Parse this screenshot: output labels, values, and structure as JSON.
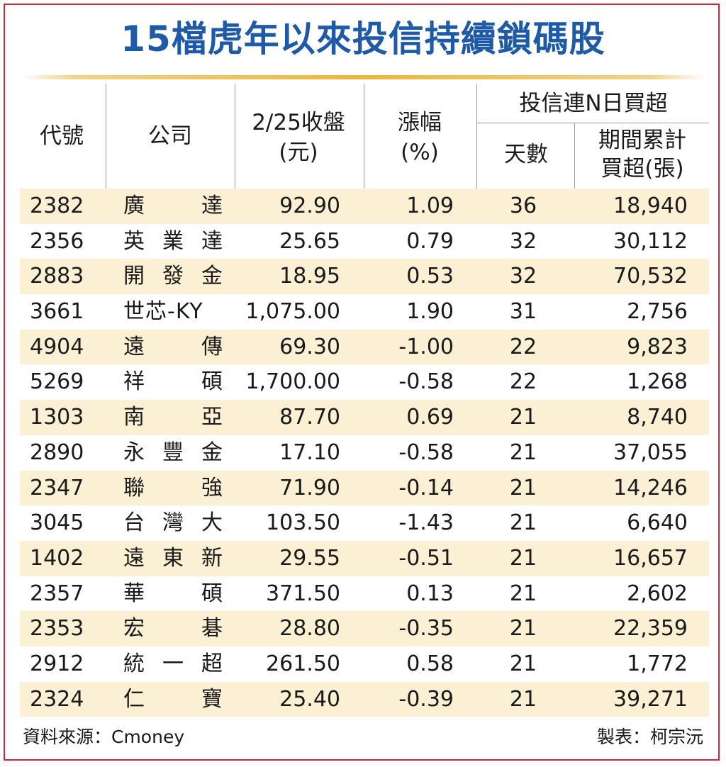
{
  "title": "15檔虎年以來投信持續鎖碼股",
  "header": {
    "code": "代號",
    "company": "公司",
    "close_line1": "2/25收盤",
    "close_line2": "(元)",
    "change_line1": "漲幅",
    "change_line2": "(%)",
    "group": "投信連N日買超",
    "days": "天數",
    "total_line1": "期間累計",
    "total_line2": "買超(張)"
  },
  "rows": [
    {
      "code": "2382",
      "name": "廣達",
      "close": "92.90",
      "change": "1.09",
      "days": "36",
      "total": "18,940"
    },
    {
      "code": "2356",
      "name": "英業達",
      "close": "25.65",
      "change": "0.79",
      "days": "32",
      "total": "30,112"
    },
    {
      "code": "2883",
      "name": "開發金",
      "close": "18.95",
      "change": "0.53",
      "days": "32",
      "total": "70,532"
    },
    {
      "code": "3661",
      "name": "世芯-KY",
      "close": "1,075.00",
      "change": "1.90",
      "days": "31",
      "total": "2,756"
    },
    {
      "code": "4904",
      "name": "遠傳",
      "close": "69.30",
      "change": "-1.00",
      "days": "22",
      "total": "9,823"
    },
    {
      "code": "5269",
      "name": "祥碩",
      "close": "1,700.00",
      "change": "-0.58",
      "days": "22",
      "total": "1,268"
    },
    {
      "code": "1303",
      "name": "南亞",
      "close": "87.70",
      "change": "0.69",
      "days": "21",
      "total": "8,740"
    },
    {
      "code": "2890",
      "name": "永豐金",
      "close": "17.10",
      "change": "-0.58",
      "days": "21",
      "total": "37,055"
    },
    {
      "code": "2347",
      "name": "聯強",
      "close": "71.90",
      "change": "-0.14",
      "days": "21",
      "total": "14,246"
    },
    {
      "code": "3045",
      "name": "台灣大",
      "close": "103.50",
      "change": "-1.43",
      "days": "21",
      "total": "6,640"
    },
    {
      "code": "1402",
      "name": "遠東新",
      "close": "29.55",
      "change": "-0.51",
      "days": "21",
      "total": "16,657"
    },
    {
      "code": "2357",
      "name": "華碩",
      "close": "371.50",
      "change": "0.13",
      "days": "21",
      "total": "2,602"
    },
    {
      "code": "2353",
      "name": "宏碁",
      "close": "28.80",
      "change": "-0.35",
      "days": "21",
      "total": "22,359"
    },
    {
      "code": "2912",
      "name": "統一超",
      "close": "261.50",
      "change": "0.58",
      "days": "21",
      "total": "1,772"
    },
    {
      "code": "2324",
      "name": "仁寶",
      "close": "25.40",
      "change": "-0.39",
      "days": "21",
      "total": "39,271"
    }
  ],
  "footer": {
    "source": "資料來源：Cmoney",
    "author": "製表：柯宗沅"
  },
  "colors": {
    "title": "#1f5aa6",
    "frame": "#c9293a",
    "stripe": "#fbf0d4",
    "rule": "#e9b739"
  }
}
